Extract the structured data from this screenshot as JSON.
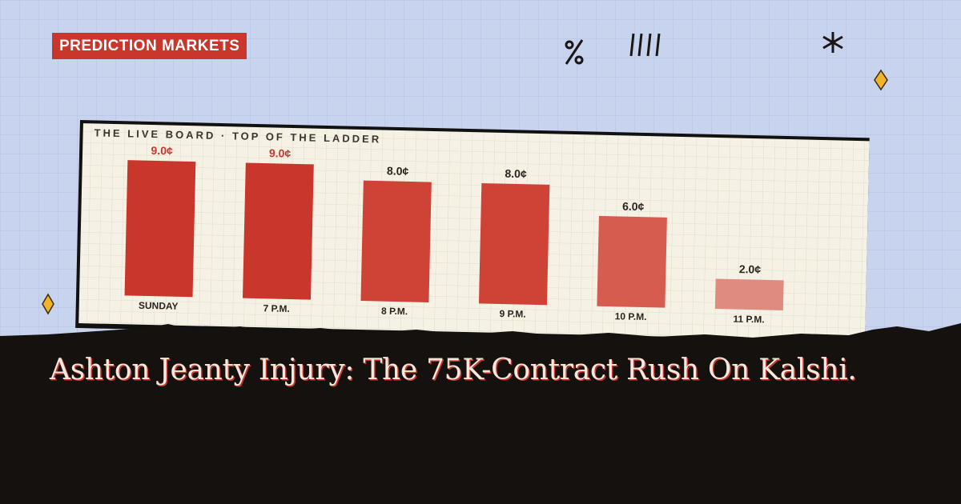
{
  "badge": "PREDICTION MARKETS",
  "headline": "Ashton Jeanty Injury: The 75K-Contract Rush On Kalshi.",
  "chart_data": {
    "type": "bar",
    "title": "THE LIVE BOARD · TOP OF THE LADDER",
    "categories": [
      "SUNDAY",
      "7 P.M.",
      "8 P.M.",
      "9 P.M.",
      "10 P.M.",
      "11 P.M."
    ],
    "values": [
      9,
      9,
      8,
      8,
      6,
      2
    ],
    "value_labels": [
      "9.0¢",
      "9.0¢",
      "8.0¢",
      "8.0¢",
      "6.0¢",
      "2.0¢"
    ],
    "colors": [
      "#c9372c",
      "#c9372c",
      "#cf4337",
      "#cf4337",
      "#d65c50",
      "#e08b80"
    ],
    "value_label_colors": [
      "#c9372c",
      "#c9372c",
      "#2a2420",
      "#2a2420",
      "#2a2420",
      "#2a2420"
    ]
  }
}
